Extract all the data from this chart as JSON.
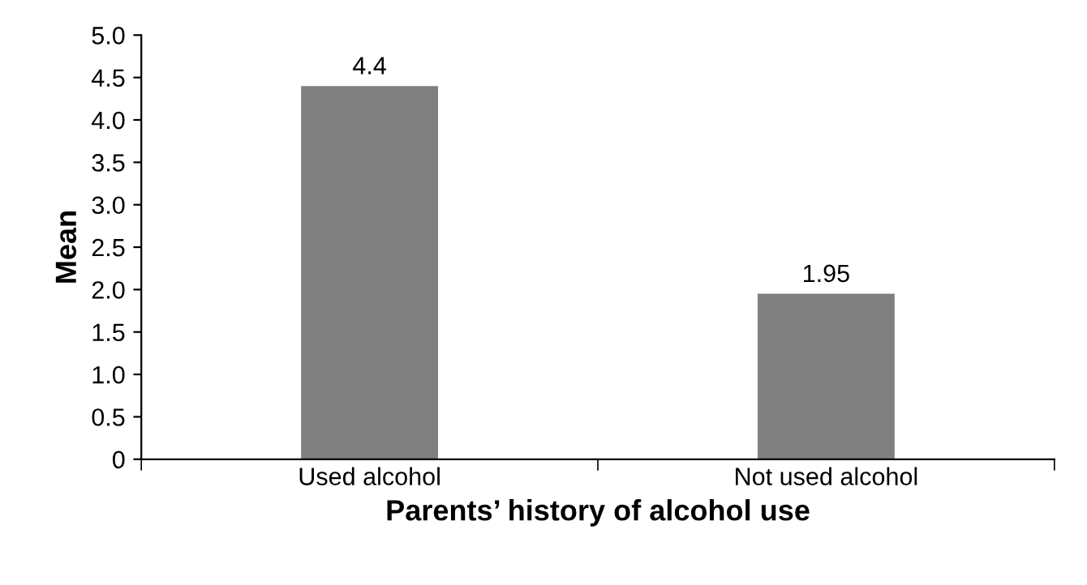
{
  "chart_data": {
    "type": "bar",
    "xlabel": "Parents’ history of alcohol use",
    "ylabel": "Mean",
    "categories": [
      "Used alcohol",
      "Not used alcohol"
    ],
    "values": [
      4.4,
      1.95
    ],
    "color": "#808080",
    "ylim": [
      0,
      5
    ],
    "yticks": [
      0,
      {
        "value": 0.5,
        "label": "0.5"
      },
      {
        "value": 1,
        "label": "1.0"
      },
      {
        "value": 1.5,
        "label": "1.5"
      },
      {
        "value": 2,
        "label": "2.0"
      },
      {
        "value": 2.5,
        "label": "2.5"
      },
      {
        "value": 3,
        "label": "3.0"
      },
      {
        "value": 3.5,
        "label": "3.5"
      },
      {
        "value": 4,
        "label": "4.0"
      },
      {
        "value": 4.5,
        "label": "4.5"
      },
      {
        "value": 5,
        "label": "5.0"
      }
    ],
    "data_labels": true,
    "grid": false,
    "legend": false
  }
}
